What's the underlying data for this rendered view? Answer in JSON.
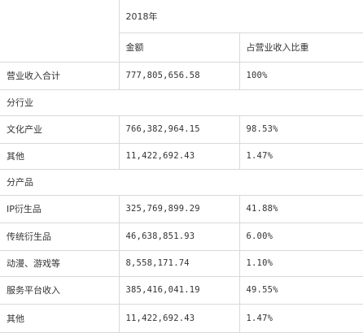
{
  "header": {
    "year": "2018年",
    "amount_label": "金额",
    "share_label": "占营业收入比重"
  },
  "total": {
    "label": "营业收入合计",
    "amount": "777,805,656.58",
    "share": "100%"
  },
  "sections": [
    {
      "title": "分行业",
      "rows": [
        {
          "label": "文化产业",
          "amount": "766,382,964.15",
          "share": "98.53%"
        },
        {
          "label": "其他",
          "amount": "11,422,692.43",
          "share": "1.47%"
        }
      ]
    },
    {
      "title": "分产品",
      "rows": [
        {
          "label": "IP衍生品",
          "amount": "325,769,899.29",
          "share": "41.88%"
        },
        {
          "label": "传统衍生品",
          "amount": "46,638,851.93",
          "share": "6.00%"
        },
        {
          "label": "动漫、游戏等",
          "amount": "8,558,171.74",
          "share": "1.10%"
        },
        {
          "label": "服务平台收入",
          "amount": "385,416,041.19",
          "share": "49.55%"
        },
        {
          "label": "其他",
          "amount": "11,422,692.43",
          "share": "1.47%"
        }
      ]
    }
  ]
}
